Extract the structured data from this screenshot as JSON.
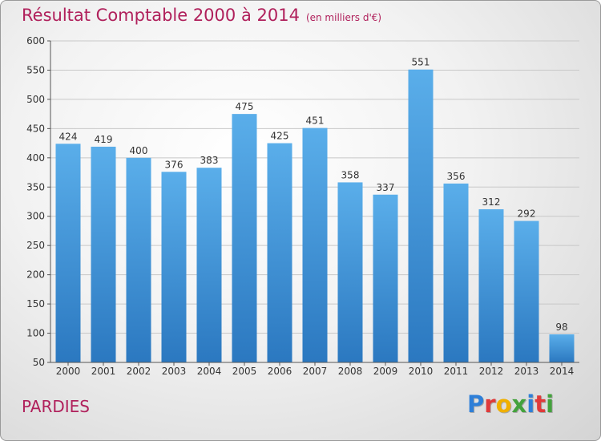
{
  "header": {
    "title": "Résultat Comptable 2000 à 2014",
    "unit": "(en milliers d'€)"
  },
  "footer": {
    "place": "PARDIES",
    "logo": "Proxiti",
    "logo_colors": [
      "#2e7fd8",
      "#e03a3a",
      "#f0b000",
      "#43a23c",
      "#2e7fd8",
      "#e03a3a",
      "#43a23c"
    ]
  },
  "colors": {
    "title": "#b0205b",
    "bar_top": "#5aaeea",
    "bar_bottom": "#2b78c0"
  },
  "chart_data": {
    "type": "bar",
    "categories": [
      "2000",
      "2001",
      "2002",
      "2003",
      "2004",
      "2005",
      "2006",
      "2007",
      "2008",
      "2009",
      "2010",
      "2011",
      "2012",
      "2013",
      "2014"
    ],
    "values": [
      424,
      419,
      400,
      376,
      383,
      475,
      425,
      451,
      358,
      337,
      551,
      356,
      312,
      292,
      98
    ],
    "ylim": [
      50,
      600
    ],
    "yticks": [
      50,
      100,
      150,
      200,
      250,
      300,
      350,
      400,
      450,
      500,
      550,
      600
    ],
    "grid": true,
    "legend": "none"
  }
}
